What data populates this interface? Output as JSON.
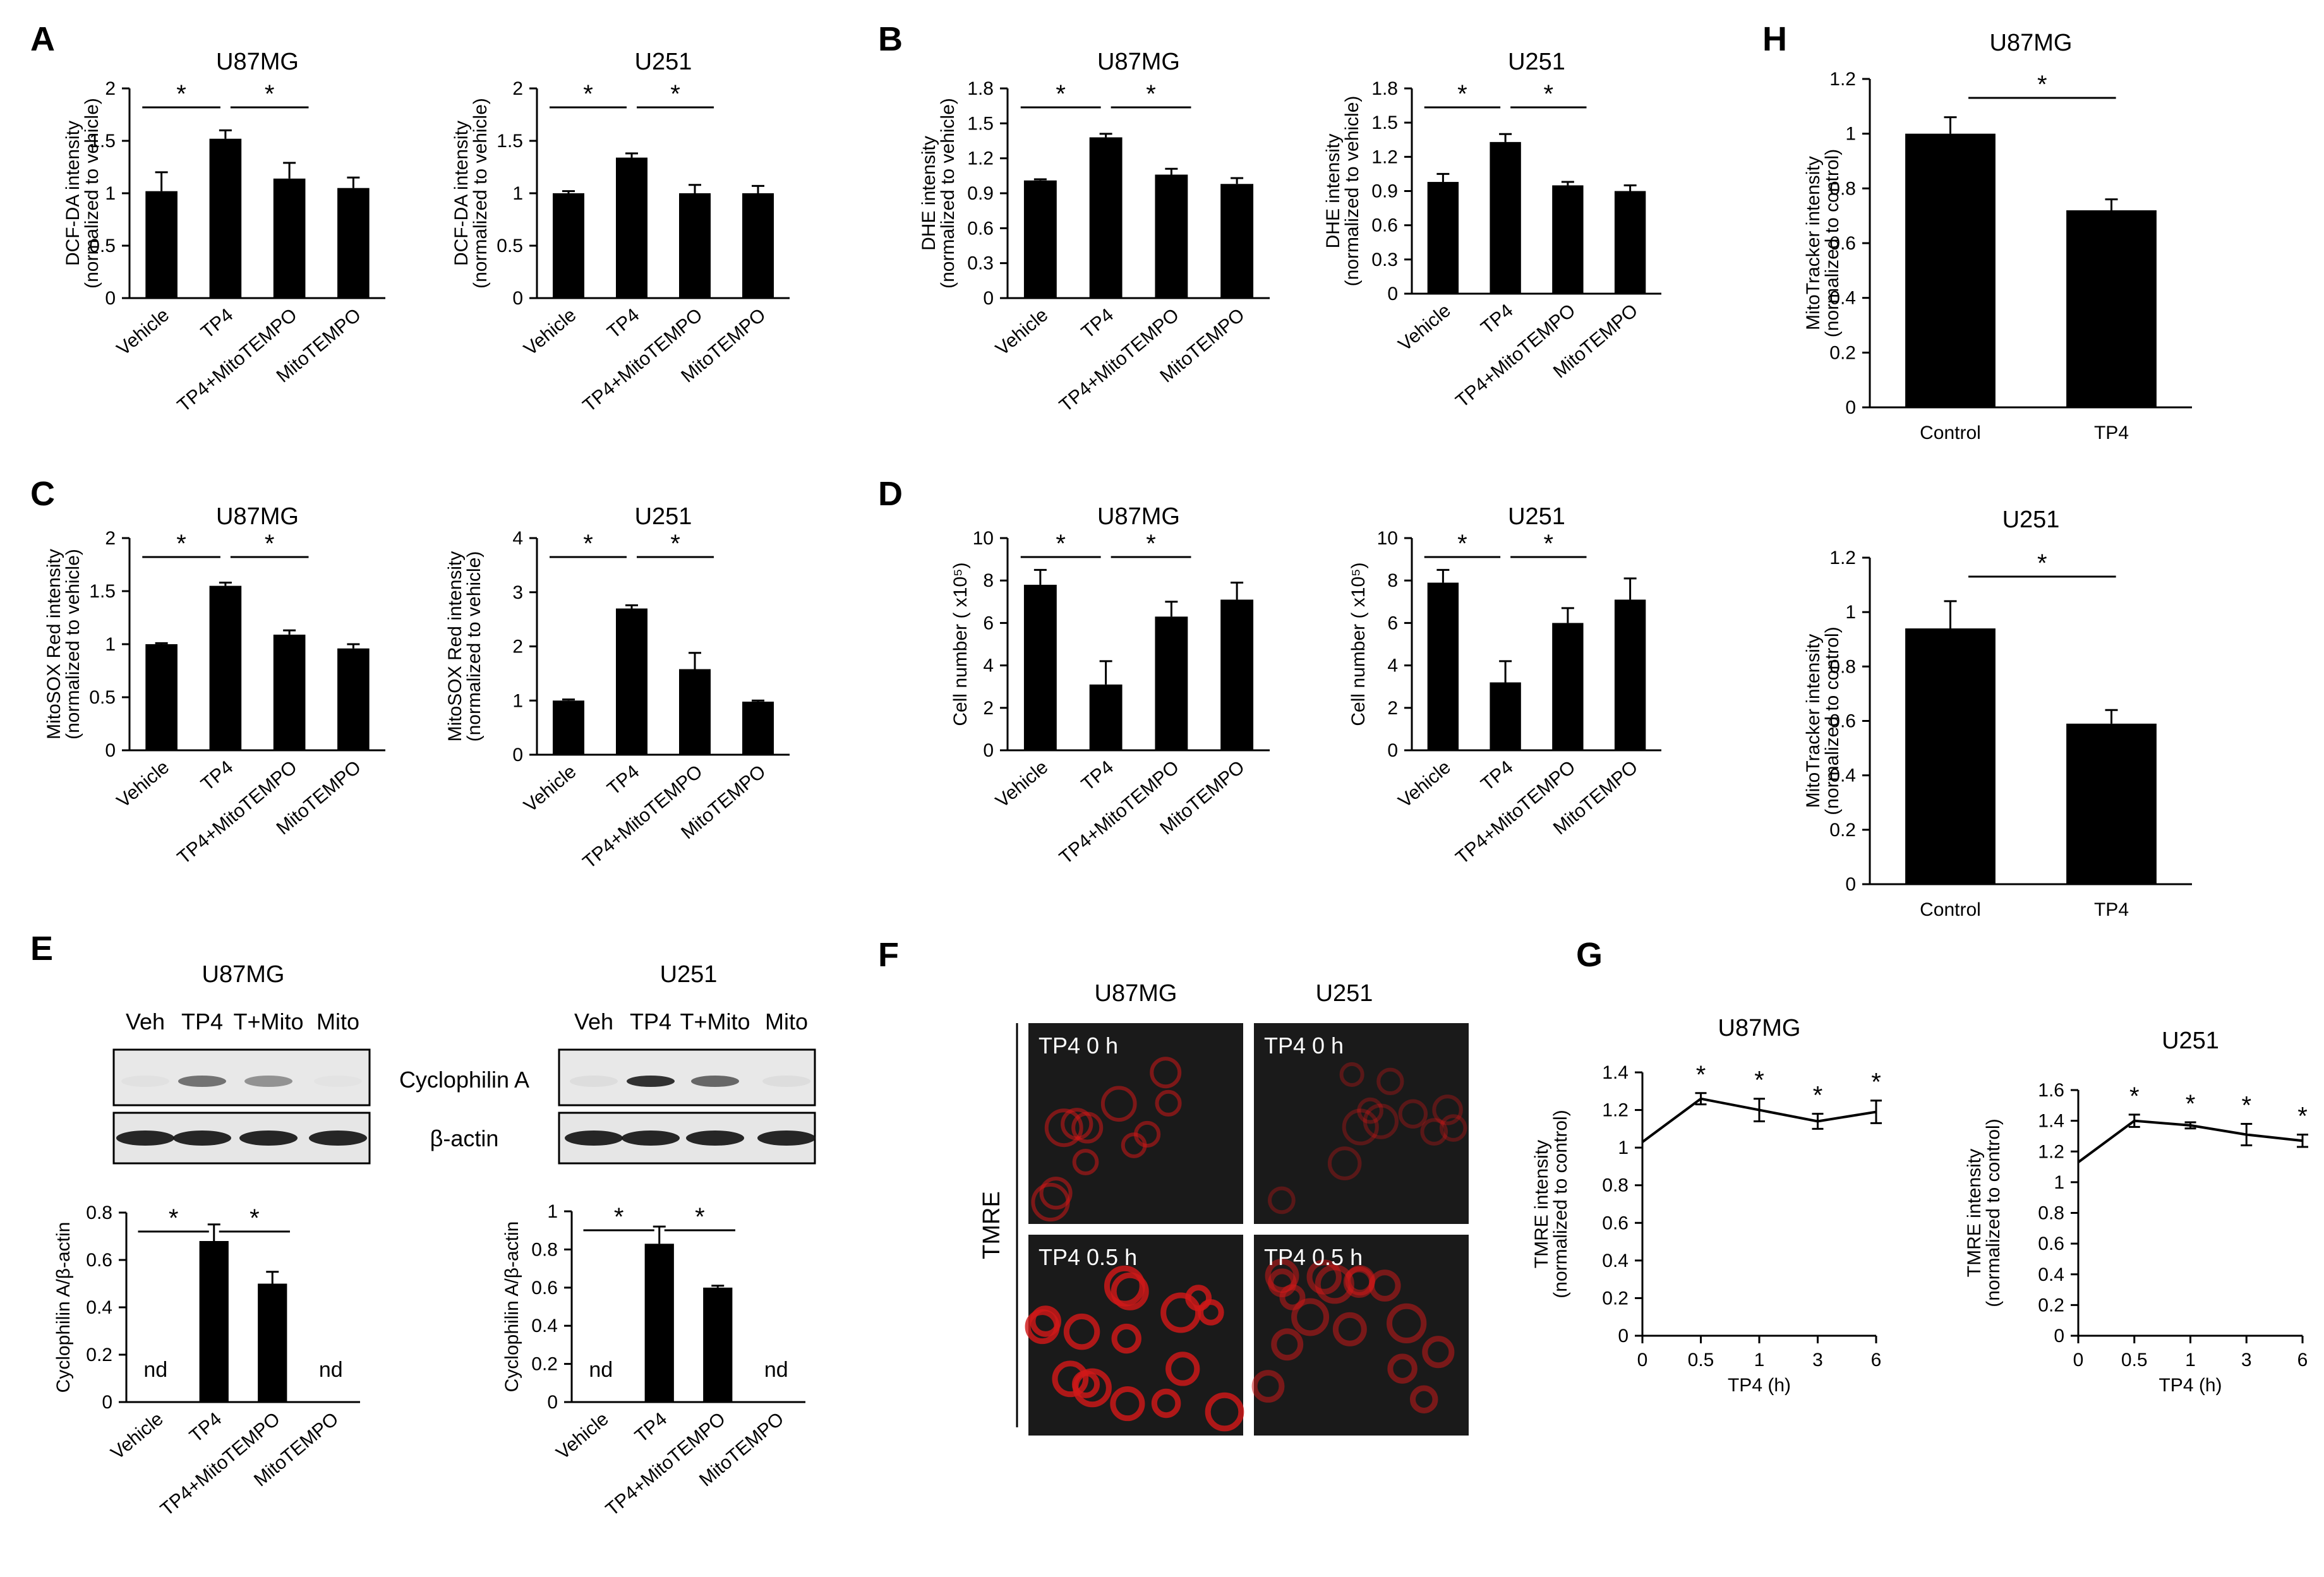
{
  "panels": {
    "A": {
      "letter": "A",
      "charts": [
        {
          "id": "A1",
          "type": "bar",
          "title": "U87MG",
          "ylabel": [
            "DCF-DA intensity",
            "(normalized to vehicle)"
          ],
          "categories": [
            "Vehicle",
            "TP4",
            "TP4+MitoTEMPO",
            "MitoTEMPO"
          ],
          "values": [
            1.02,
            1.52,
            1.14,
            1.05
          ],
          "errors": [
            0.18,
            0.08,
            0.15,
            0.1
          ],
          "ylim": [
            0,
            2
          ],
          "yticks": [
            0,
            0.5,
            1,
            1.5,
            2
          ],
          "yticklabels": [
            "0",
            "0.5",
            "1",
            "1.5",
            "2"
          ],
          "sig": [
            {
              "from": 0,
              "to": 1,
              "label": "*"
            },
            {
              "from": 1,
              "to": 2,
              "label": "*"
            }
          ]
        },
        {
          "id": "A2",
          "type": "bar",
          "title": "U251",
          "ylabel": [
            "DCF-DA intensity",
            "(normalized to vehicle)"
          ],
          "categories": [
            "Vehicle",
            "TP4",
            "TP4+MitoTEMPO",
            "MitoTEMPO"
          ],
          "values": [
            1.0,
            1.34,
            1.0,
            1.0
          ],
          "errors": [
            0.02,
            0.04,
            0.08,
            0.07
          ],
          "ylim": [
            0,
            2
          ],
          "yticks": [
            0,
            0.5,
            1,
            1.5,
            2
          ],
          "yticklabels": [
            "0",
            "0.5",
            "1",
            "1.5",
            "2"
          ],
          "sig": [
            {
              "from": 0,
              "to": 1,
              "label": "*"
            },
            {
              "from": 1,
              "to": 2,
              "label": "*"
            }
          ]
        }
      ]
    },
    "B": {
      "letter": "B",
      "charts": [
        {
          "id": "B1",
          "type": "bar",
          "title": "U87MG",
          "ylabel": [
            "DHE intensity",
            "(normalized to vehicle)"
          ],
          "categories": [
            "Vehicle",
            "TP4",
            "TP4+MitoTEMPO",
            "MitoTEMPO"
          ],
          "values": [
            1.01,
            1.38,
            1.06,
            0.98
          ],
          "errors": [
            0.01,
            0.03,
            0.05,
            0.05
          ],
          "ylim": [
            0,
            1.8
          ],
          "yticks": [
            0,
            0.3,
            0.6,
            0.9,
            1.2,
            1.5,
            1.8
          ],
          "yticklabels": [
            "0",
            "0.3",
            "0.6",
            "0.9",
            "1.2",
            "1.5",
            "1.8"
          ],
          "sig": [
            {
              "from": 0,
              "to": 1,
              "label": "*"
            },
            {
              "from": 1,
              "to": 2,
              "label": "*"
            }
          ]
        },
        {
          "id": "B2",
          "type": "bar",
          "title": "U251",
          "ylabel": [
            "DHE intensity",
            "(normalized to vehicle)"
          ],
          "categories": [
            "Vehicle",
            "TP4",
            "TP4+MitoTEMPO",
            "MitoTEMPO"
          ],
          "values": [
            0.98,
            1.33,
            0.95,
            0.9
          ],
          "errors": [
            0.07,
            0.07,
            0.03,
            0.05
          ],
          "ylim": [
            0,
            1.8
          ],
          "yticks": [
            0,
            0.3,
            0.6,
            0.9,
            1.2,
            1.5,
            1.8
          ],
          "yticklabels": [
            "0",
            "0.3",
            "0.6",
            "0.9",
            "1.2",
            "1.5",
            "1.8"
          ],
          "sig": [
            {
              "from": 0,
              "to": 1,
              "label": "*"
            },
            {
              "from": 1,
              "to": 2,
              "label": "*"
            }
          ]
        }
      ]
    },
    "C": {
      "letter": "C",
      "charts": [
        {
          "id": "C1",
          "type": "bar",
          "title": "U87MG",
          "ylabel": [
            "MitoSOX Red intensity",
            "(normalized to vehicle)"
          ],
          "categories": [
            "Vehicle",
            "TP4",
            "TP4+MitoTEMPO",
            "MitoTEMPO"
          ],
          "values": [
            1.0,
            1.55,
            1.09,
            0.96
          ],
          "errors": [
            0.01,
            0.03,
            0.04,
            0.04
          ],
          "ylim": [
            0,
            2
          ],
          "yticks": [
            0,
            0.5,
            1,
            1.5,
            2
          ],
          "yticklabels": [
            "0",
            "0.5",
            "1",
            "1.5",
            "2"
          ],
          "sig": [
            {
              "from": 0,
              "to": 1,
              "label": "*"
            },
            {
              "from": 1,
              "to": 2,
              "label": "*"
            }
          ]
        },
        {
          "id": "C2",
          "type": "bar",
          "title": "U251",
          "ylabel": [
            "MitoSOX Red intensity",
            "(normalized to vehicle)"
          ],
          "categories": [
            "Vehicle",
            "TP4",
            "TP4+MitoTEMPO",
            "MitoTEMPO"
          ],
          "values": [
            1.0,
            2.7,
            1.58,
            0.98
          ],
          "errors": [
            0.02,
            0.06,
            0.3,
            0.02
          ],
          "ylim": [
            0,
            4
          ],
          "yticks": [
            0,
            1,
            2,
            3,
            4
          ],
          "yticklabels": [
            "0",
            "1",
            "2",
            "3",
            "4"
          ],
          "sig": [
            {
              "from": 0,
              "to": 1,
              "label": "*"
            },
            {
              "from": 1,
              "to": 2,
              "label": "*"
            }
          ]
        }
      ]
    },
    "D": {
      "letter": "D",
      "charts": [
        {
          "id": "D1",
          "type": "bar",
          "title": "U87MG",
          "ylabel": [
            "Cell number ( x10⁵)"
          ],
          "categories": [
            "Vehicle",
            "TP4",
            "TP4+MitoTEMPO",
            "MitoTEMPO"
          ],
          "values": [
            7.8,
            3.1,
            6.3,
            7.1
          ],
          "errors": [
            0.7,
            1.1,
            0.7,
            0.8
          ],
          "ylim": [
            0,
            10
          ],
          "yticks": [
            0,
            2,
            4,
            6,
            8,
            10
          ],
          "yticklabels": [
            "0",
            "2",
            "4",
            "6",
            "8",
            "10"
          ],
          "sig": [
            {
              "from": 0,
              "to": 1,
              "label": "*"
            },
            {
              "from": 1,
              "to": 2,
              "label": "*"
            }
          ]
        },
        {
          "id": "D2",
          "type": "bar",
          "title": "U251",
          "ylabel": [
            "Cell number ( x10⁵)"
          ],
          "categories": [
            "Vehicle",
            "TP4",
            "TP4+MitoTEMPO",
            "MitoTEMPO"
          ],
          "values": [
            7.9,
            3.2,
            6.0,
            7.1
          ],
          "errors": [
            0.6,
            1.0,
            0.7,
            1.0
          ],
          "ylim": [
            0,
            10
          ],
          "yticks": [
            0,
            2,
            4,
            6,
            8,
            10
          ],
          "yticklabels": [
            "0",
            "2",
            "4",
            "6",
            "8",
            "10"
          ],
          "sig": [
            {
              "from": 0,
              "to": 1,
              "label": "*"
            },
            {
              "from": 1,
              "to": 2,
              "label": "*"
            }
          ]
        }
      ]
    },
    "E": {
      "letter": "E",
      "blots": [
        {
          "id": "E1",
          "title": "U87MG",
          "lanes": [
            "Veh",
            "TP4",
            "T+Mito",
            "Mito"
          ]
        },
        {
          "id": "E2",
          "title": "U251",
          "lanes": [
            "Veh",
            "TP4",
            "T+Mito",
            "Mito"
          ]
        }
      ],
      "blot_labels": [
        "Cyclophilin A",
        "β-actin"
      ],
      "charts": [
        {
          "id": "E3",
          "type": "bar",
          "title": "",
          "ylabel": [
            "Cyclophilin A/β-actin"
          ],
          "categories": [
            "Vehicle",
            "TP4",
            "TP4+MitoTEMPO",
            "MitoTEMPO"
          ],
          "values": [
            0,
            0.68,
            0.5,
            0
          ],
          "errors": [
            0,
            0.07,
            0.05,
            0
          ],
          "ylim": [
            0,
            0.8
          ],
          "yticks": [
            0,
            0.2,
            0.4,
            0.6,
            0.8
          ],
          "yticklabels": [
            "0",
            "0.2",
            "0.4",
            "0.6",
            "0.8"
          ],
          "nd": [
            0,
            3
          ],
          "nd_label": "nd",
          "sig": [
            {
              "from": 0,
              "to": 1,
              "label": "*"
            },
            {
              "from": 1,
              "to": 2,
              "label": "*"
            }
          ]
        },
        {
          "id": "E4",
          "type": "bar",
          "title": "",
          "ylabel": [
            "Cyclophilin A/β-actin"
          ],
          "categories": [
            "Vehicle",
            "TP4",
            "TP4+MitoTEMPO",
            "MitoTEMPO"
          ],
          "values": [
            0,
            0.83,
            0.6,
            0
          ],
          "errors": [
            0,
            0.09,
            0.01,
            0
          ],
          "ylim": [
            0,
            1
          ],
          "yticks": [
            0,
            0.2,
            0.4,
            0.6,
            0.8,
            1
          ],
          "yticklabels": [
            "0",
            "0.2",
            "0.4",
            "0.6",
            "0.8",
            "1"
          ],
          "nd": [
            0,
            3
          ],
          "nd_label": "nd",
          "sig": [
            {
              "from": 0,
              "to": 1,
              "label": "*"
            },
            {
              "from": 1,
              "to": 2,
              "label": "*"
            }
          ]
        }
      ]
    },
    "F": {
      "letter": "F",
      "columns": [
        "U87MG",
        "U251"
      ],
      "side_label": "TMRE",
      "images": [
        "TP4 0 h",
        "TP4 0 h",
        "TP4 0.5 h",
        "TP4 0.5 h"
      ]
    },
    "G": {
      "letter": "G",
      "charts": [
        {
          "id": "G1",
          "type": "line",
          "title": "U87MG",
          "ylabel": [
            "TMRE intensity",
            "(normalized to control)"
          ],
          "xlabel": "TP4 (h)",
          "x": [
            "0",
            "0.5",
            "1",
            "3",
            "6"
          ],
          "values": [
            1.03,
            1.26,
            1.2,
            1.14,
            1.19
          ],
          "errors": [
            0,
            0.03,
            0.06,
            0.04,
            0.06
          ],
          "stars": [
            false,
            true,
            true,
            true,
            true
          ],
          "star_label": "*",
          "ylim": [
            0,
            1.4
          ],
          "yticks": [
            0,
            0.2,
            0.4,
            0.6,
            0.8,
            1,
            1.2,
            1.4
          ],
          "yticklabels": [
            "0",
            "0.2",
            "0.4",
            "0.6",
            "0.8",
            "1",
            "1.2",
            "1.4"
          ]
        },
        {
          "id": "G2",
          "type": "line",
          "title": "U251",
          "ylabel": [
            "TMRE intensity",
            "(normalized to control)"
          ],
          "xlabel": "TP4 (h)",
          "x": [
            "0",
            "0.5",
            "1",
            "3",
            "6"
          ],
          "values": [
            1.13,
            1.4,
            1.37,
            1.31,
            1.27
          ],
          "errors": [
            0,
            0.04,
            0.02,
            0.07,
            0.04
          ],
          "stars": [
            false,
            true,
            true,
            true,
            true
          ],
          "star_label": "*",
          "ylim": [
            0,
            1.6
          ],
          "yticks": [
            0,
            0.2,
            0.4,
            0.6,
            0.8,
            1,
            1.2,
            1.4,
            1.6
          ],
          "yticklabels": [
            "0",
            "0.2",
            "0.4",
            "0.6",
            "0.8",
            "1",
            "1.2",
            "1.4",
            "1.6"
          ]
        }
      ]
    },
    "H": {
      "letter": "H",
      "charts": [
        {
          "id": "H1",
          "type": "bar",
          "title": "U87MG",
          "ylabel": [
            "MitoTracker intensity",
            "(normalized to control)"
          ],
          "categories": [
            "Control",
            "TP4"
          ],
          "values": [
            1.0,
            0.72
          ],
          "errors": [
            0.06,
            0.04
          ],
          "ylim": [
            0,
            1.2
          ],
          "yticks": [
            0,
            0.2,
            0.4,
            0.6,
            0.8,
            1,
            1.2
          ],
          "yticklabels": [
            "0",
            "0.2",
            "0.4",
            "0.6",
            "0.8",
            "1",
            "1.2"
          ],
          "sig": [
            {
              "from": 0,
              "to": 1,
              "label": "*"
            }
          ]
        },
        {
          "id": "H2",
          "type": "bar",
          "title": "U251",
          "ylabel": [
            "MitoTracker intensity",
            "(normalized to control)"
          ],
          "categories": [
            "Control",
            "TP4"
          ],
          "values": [
            0.94,
            0.59
          ],
          "errors": [
            0.1,
            0.05
          ],
          "ylim": [
            0,
            1.2
          ],
          "yticks": [
            0,
            0.2,
            0.4,
            0.6,
            0.8,
            1,
            1.2
          ],
          "yticklabels": [
            "0",
            "0.2",
            "0.4",
            "0.6",
            "0.8",
            "1",
            "1.2"
          ],
          "sig": [
            {
              "from": 0,
              "to": 1,
              "label": "*"
            }
          ]
        }
      ]
    }
  }
}
